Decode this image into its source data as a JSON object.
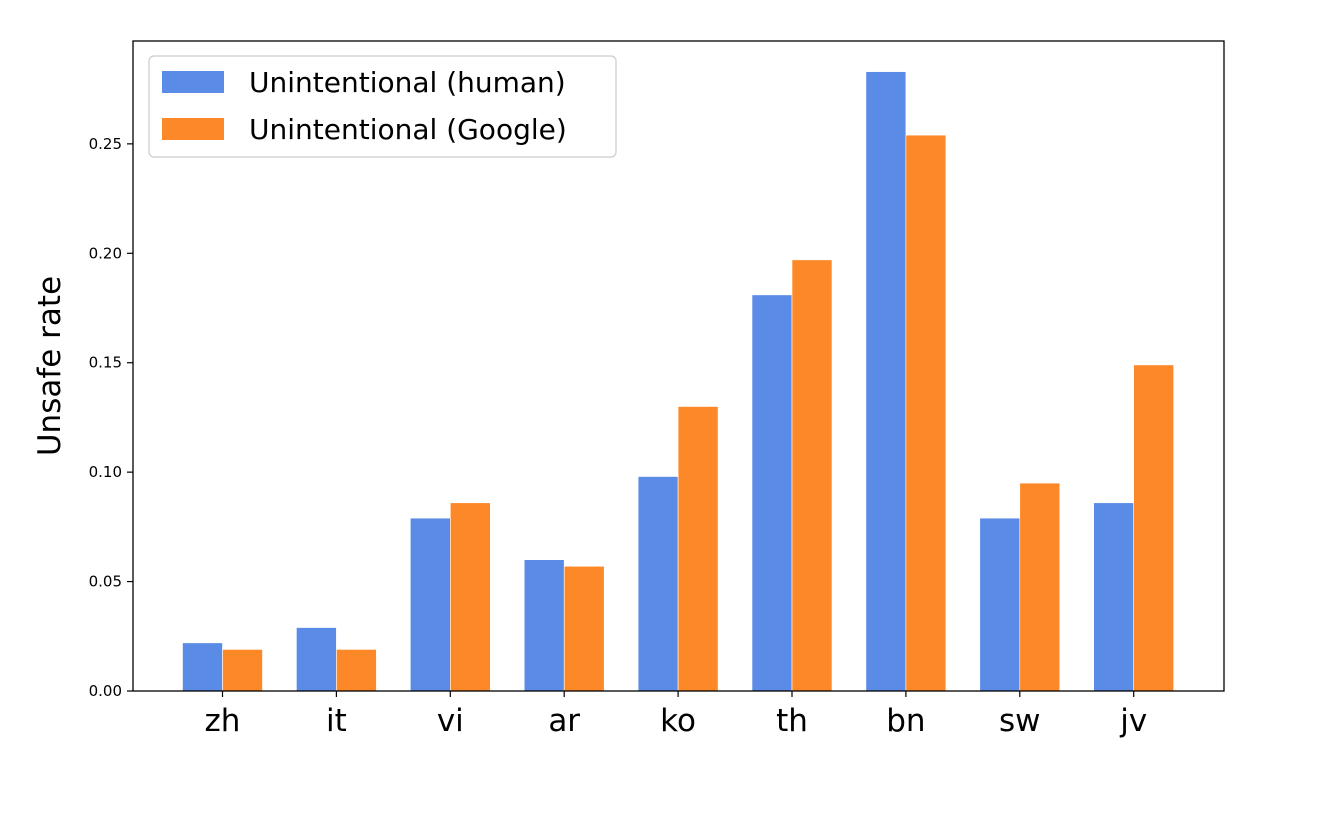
{
  "chart_data": {
    "type": "bar",
    "title": "",
    "xlabel": "",
    "ylabel": "Unsafe rate",
    "ylim": [
      0,
      0.297
    ],
    "yticks": [
      "0.00",
      "0.05",
      "0.10",
      "0.15",
      "0.20",
      "0.25"
    ],
    "categories": [
      "zh",
      "it",
      "vi",
      "ar",
      "ko",
      "th",
      "bn",
      "sw",
      "jv"
    ],
    "series": [
      {
        "name": "Unintentional (human)",
        "color": "#5a8be6",
        "values": [
          0.022,
          0.029,
          0.079,
          0.06,
          0.098,
          0.181,
          0.283,
          0.079,
          0.086
        ]
      },
      {
        "name": "Unintentional (Google)",
        "color": "#fd8827",
        "values": [
          0.019,
          0.019,
          0.086,
          0.057,
          0.13,
          0.197,
          0.254,
          0.095,
          0.149
        ]
      }
    ],
    "legend_position": "top-left",
    "grid": false
  }
}
